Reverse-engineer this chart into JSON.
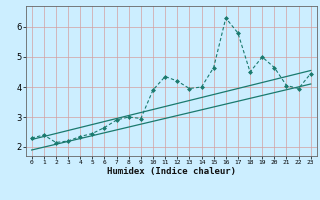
{
  "xlabel": "Humidex (Indice chaleur)",
  "bg_color": "#cceeff",
  "grid_color": "#d4a0a0",
  "line_color": "#1a7a6e",
  "xlim": [
    -0.5,
    23.5
  ],
  "ylim": [
    1.7,
    6.7
  ],
  "xticks": [
    0,
    1,
    2,
    3,
    4,
    5,
    6,
    7,
    8,
    9,
    10,
    11,
    12,
    13,
    14,
    15,
    16,
    17,
    18,
    19,
    20,
    21,
    22,
    23
  ],
  "yticks": [
    2,
    3,
    4,
    5,
    6
  ],
  "data_x": [
    0,
    1,
    2,
    3,
    4,
    5,
    6,
    7,
    8,
    9,
    10,
    11,
    12,
    13,
    14,
    15,
    16,
    17,
    18,
    19,
    20,
    21,
    22,
    23
  ],
  "data_y": [
    2.3,
    2.4,
    2.15,
    2.2,
    2.35,
    2.45,
    2.65,
    2.9,
    3.0,
    2.95,
    3.9,
    4.35,
    4.2,
    3.95,
    4.0,
    4.65,
    6.3,
    5.8,
    4.5,
    5.0,
    4.65,
    4.05,
    3.95,
    4.45
  ],
  "trend1_x": [
    0,
    23
  ],
  "trend1_y": [
    2.25,
    4.55
  ],
  "trend2_x": [
    0,
    23
  ],
  "trend2_y": [
    1.9,
    4.1
  ]
}
